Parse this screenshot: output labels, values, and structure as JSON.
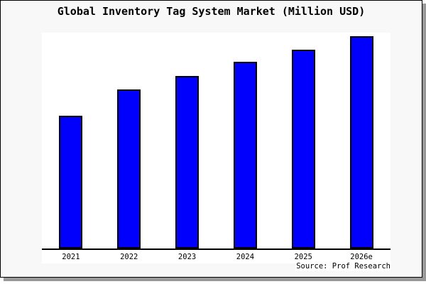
{
  "card": {
    "background": "#f8f8f8",
    "border_color": "#000000",
    "shadow_color": "#9a9a9a"
  },
  "title": "Global Inventory Tag System Market (Million USD)",
  "source_note": "Source: Prof Research",
  "chart_data": {
    "type": "bar",
    "title": "Global Inventory Tag System Market (Million USD)",
    "categories": [
      "2021",
      "2022",
      "2023",
      "2024",
      "2025",
      "2026e"
    ],
    "values_pct_of_max": [
      62.5,
      74.9,
      81.3,
      88.0,
      93.7,
      100.0
    ],
    "note": "No y-axis, gridlines, value labels or legend shown; bar heights estimated as percent of the tallest (2026e) bar",
    "xlabel": "",
    "ylabel": "",
    "y_axis_shown": false,
    "grid": false,
    "legend": false,
    "bar_color": "#0000fc",
    "bar_border_color": "#000000",
    "plot_background": "#ffffff",
    "source": "Source: Prof Research"
  }
}
